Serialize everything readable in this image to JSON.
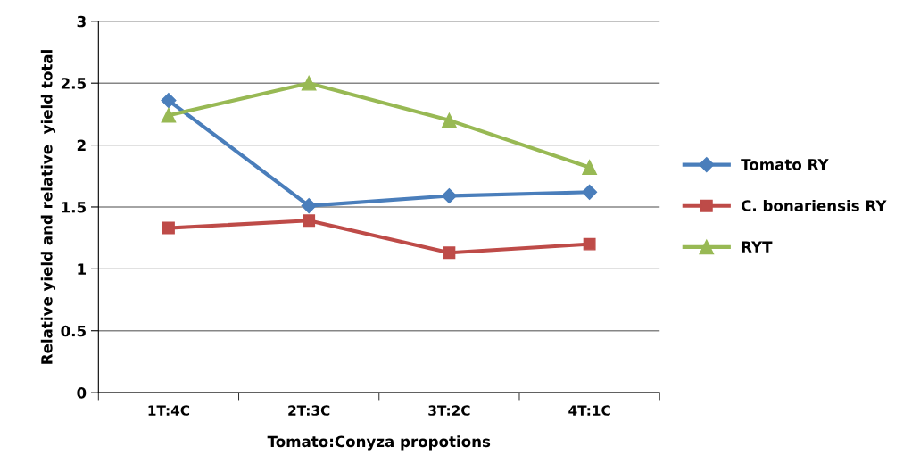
{
  "chart_data": {
    "type": "line",
    "xlabel": "Tomato:Conyza propotions",
    "ylabel": "Relative yield and relative  yield total",
    "categories": [
      "1T:4C",
      "2T:3C",
      "3T:2C",
      "4T:1C"
    ],
    "series": [
      {
        "name": "Tomato RY",
        "color": "#4a7ebb",
        "marker": "diamond",
        "values": [
          2.36,
          1.51,
          1.59,
          1.62
        ]
      },
      {
        "name": "C. bonariensis RY",
        "color": "#be4b48",
        "marker": "square",
        "values": [
          1.33,
          1.39,
          1.13,
          1.2
        ]
      },
      {
        "name": "RYT",
        "color": "#98b954",
        "marker": "triangle",
        "values": [
          2.24,
          2.5,
          2.2,
          1.82
        ]
      }
    ],
    "ylim": [
      0,
      3
    ],
    "yticks": [
      0,
      0.5,
      1,
      1.5,
      2,
      2.5,
      3
    ],
    "grid": "y",
    "legend": "right",
    "line_style": "solid"
  }
}
